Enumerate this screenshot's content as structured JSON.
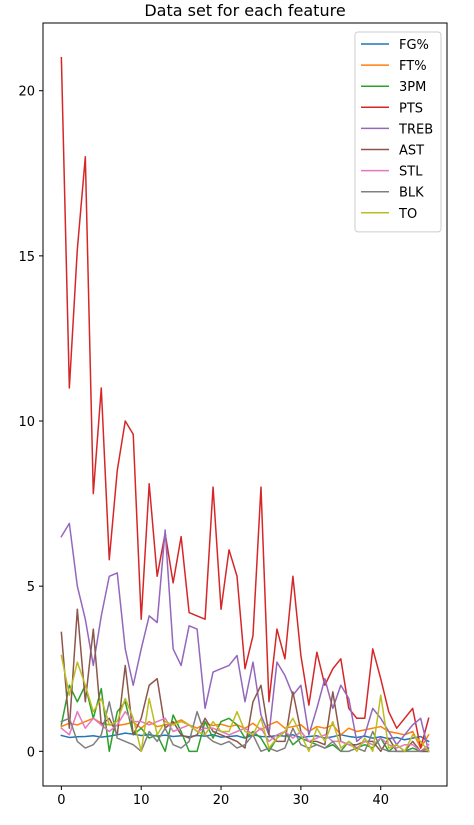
{
  "chart_data": {
    "type": "line",
    "title": "Data set for each feature",
    "xlabel": "",
    "ylabel": "",
    "xlim": [
      -2.3,
      48.3
    ],
    "ylim": [
      -1.05,
      22.05
    ],
    "x_ticks": [
      0,
      10,
      20,
      30,
      40
    ],
    "y_ticks": [
      0,
      5,
      10,
      15,
      20
    ],
    "grid": false,
    "legend_position": "top-right",
    "x": [
      0,
      1,
      2,
      3,
      4,
      5,
      6,
      7,
      8,
      9,
      10,
      11,
      12,
      13,
      14,
      15,
      16,
      17,
      18,
      19,
      20,
      21,
      22,
      23,
      24,
      25,
      26,
      27,
      28,
      29,
      30,
      31,
      32,
      33,
      34,
      35,
      36,
      37,
      38,
      39,
      40,
      41,
      42,
      43,
      44,
      45,
      46
    ],
    "series": [
      {
        "name": "FG%",
        "color": "#1f77b4",
        "values": [
          0.48,
          0.42,
          0.44,
          0.45,
          0.47,
          0.43,
          0.46,
          0.5,
          0.55,
          0.52,
          0.48,
          0.5,
          0.46,
          0.49,
          0.45,
          0.47,
          0.44,
          0.48,
          0.46,
          0.5,
          0.43,
          0.45,
          0.47,
          0.4,
          0.5,
          0.45,
          0.44,
          0.48,
          0.46,
          0.5,
          0.42,
          0.45,
          0.47,
          0.4,
          0.44,
          0.5,
          0.45,
          0.42,
          0.46,
          0.4,
          0.44,
          0.38,
          0.42,
          0.35,
          0.4,
          0.45,
          0.3
        ]
      },
      {
        "name": "FT%",
        "color": "#ff7f0e",
        "values": [
          0.75,
          0.85,
          0.8,
          0.9,
          1.0,
          0.85,
          0.8,
          0.78,
          0.82,
          0.88,
          0.7,
          0.9,
          0.75,
          0.8,
          0.85,
          0.95,
          0.8,
          0.7,
          0.85,
          0.78,
          0.82,
          0.75,
          0.8,
          0.7,
          0.85,
          0.65,
          0.8,
          0.9,
          0.7,
          0.75,
          0.8,
          0.6,
          0.75,
          0.7,
          0.8,
          0.5,
          0.7,
          0.6,
          0.65,
          0.7,
          0.75,
          0.6,
          0.55,
          0.5,
          0.6,
          0.1,
          0.5
        ]
      },
      {
        "name": "3PM",
        "color": "#2ca02c",
        "values": [
          0.8,
          2.0,
          1.5,
          2.0,
          1.0,
          1.9,
          0.0,
          1.2,
          1.5,
          0.5,
          0.7,
          0.4,
          0.5,
          0.0,
          1.1,
          0.6,
          0.0,
          0.0,
          0.9,
          0.4,
          0.9,
          1.0,
          0.8,
          0.4,
          0.6,
          0.4,
          0.0,
          0.4,
          0.6,
          0.2,
          0.4,
          0.3,
          0.2,
          0.1,
          0.2,
          0.0,
          0.3,
          0.1,
          0.2,
          0.1,
          0.4,
          0.0,
          0.2,
          0.0,
          0.1,
          0.0,
          0.0
        ]
      },
      {
        "name": "PTS",
        "color": "#d62728",
        "values": [
          21.0,
          11.0,
          15.2,
          18.0,
          7.8,
          11.0,
          5.8,
          8.5,
          10.0,
          9.6,
          4.0,
          8.1,
          5.3,
          6.6,
          5.1,
          6.5,
          4.2,
          4.1,
          4.0,
          8.0,
          4.3,
          6.1,
          5.3,
          2.5,
          3.5,
          8.0,
          1.5,
          3.7,
          2.8,
          5.3,
          2.9,
          1.4,
          3.0,
          2.0,
          2.5,
          2.8,
          1.3,
          1.0,
          1.0,
          3.1,
          2.2,
          1.2,
          0.7,
          1.0,
          1.3,
          0.1,
          1.0
        ]
      },
      {
        "name": "TREB",
        "color": "#9467bd",
        "values": [
          6.5,
          6.9,
          5.0,
          4.0,
          2.6,
          4.1,
          5.3,
          5.4,
          3.1,
          2.0,
          3.1,
          4.1,
          3.9,
          6.7,
          3.1,
          2.6,
          3.8,
          3.7,
          1.3,
          2.4,
          2.5,
          2.6,
          2.9,
          1.5,
          2.7,
          1.1,
          0.5,
          2.7,
          2.3,
          1.7,
          2.0,
          0.5,
          1.3,
          2.2,
          1.3,
          2.0,
          1.6,
          0.3,
          0.5,
          1.3,
          1.0,
          0.6,
          0.2,
          0.5,
          0.8,
          1.0,
          0.0
        ]
      },
      {
        "name": "AST",
        "color": "#8c564b",
        "values": [
          3.6,
          0.7,
          4.3,
          1.5,
          3.7,
          0.8,
          1.0,
          0.5,
          2.6,
          0.5,
          1.0,
          2.0,
          2.2,
          0.7,
          0.9,
          0.5,
          0.4,
          0.5,
          1.0,
          0.6,
          0.5,
          0.4,
          0.3,
          0.1,
          1.5,
          2.0,
          0.5,
          0.3,
          0.3,
          1.8,
          0.6,
          0.3,
          0.3,
          0.2,
          1.8,
          0.3,
          0.2,
          0.2,
          0.3,
          0.3,
          0.0,
          0.4,
          0.0,
          0.0,
          0.3,
          0.0,
          0.0
        ]
      },
      {
        "name": "STL",
        "color": "#e377c2",
        "values": [
          0.7,
          0.5,
          1.2,
          0.7,
          1.0,
          0.8,
          0.6,
          0.8,
          1.2,
          0.9,
          0.9,
          0.8,
          0.9,
          1.0,
          0.6,
          0.7,
          0.8,
          0.6,
          0.7,
          0.7,
          0.6,
          0.5,
          0.6,
          0.7,
          0.5,
          0.7,
          0.3,
          0.5,
          0.6,
          0.4,
          0.6,
          0.3,
          0.4,
          0.5,
          0.3,
          0.3,
          0.2,
          0.1,
          0.3,
          0.2,
          0.4,
          0.2,
          0.1,
          0.2,
          0.2,
          0.0,
          0.2
        ]
      },
      {
        "name": "BLK",
        "color": "#7f7f7f",
        "values": [
          0.9,
          1.0,
          0.3,
          0.1,
          0.2,
          0.5,
          1.5,
          0.4,
          0.3,
          0.2,
          0.0,
          0.6,
          0.3,
          0.7,
          0.2,
          0.1,
          0.3,
          1.2,
          0.5,
          0.3,
          0.2,
          0.3,
          0.1,
          0.2,
          0.5,
          0.0,
          0.1,
          0.0,
          0.1,
          0.7,
          0.2,
          0.1,
          0.2,
          0.1,
          0.3,
          0.0,
          0.0,
          0.1,
          0.0,
          0.6,
          0.1,
          0.0,
          0.0,
          0.0,
          0.0,
          0.0,
          0.1
        ]
      },
      {
        "name": "TO",
        "color": "#bcbd22",
        "values": [
          2.9,
          1.7,
          2.7,
          2.0,
          1.2,
          1.6,
          0.8,
          0.9,
          1.6,
          1.0,
          0.0,
          1.6,
          0.5,
          0.9,
          0.8,
          0.9,
          0.8,
          0.6,
          0.5,
          0.9,
          0.6,
          0.6,
          1.2,
          0.6,
          0.5,
          1.0,
          0.1,
          0.4,
          0.6,
          1.0,
          0.5,
          0.0,
          0.7,
          0.3,
          0.9,
          0.1,
          0.3,
          0.0,
          0.4,
          0.0,
          1.7,
          0.1,
          0.2,
          0.0,
          0.5,
          0.3,
          0.0
        ]
      }
    ]
  }
}
